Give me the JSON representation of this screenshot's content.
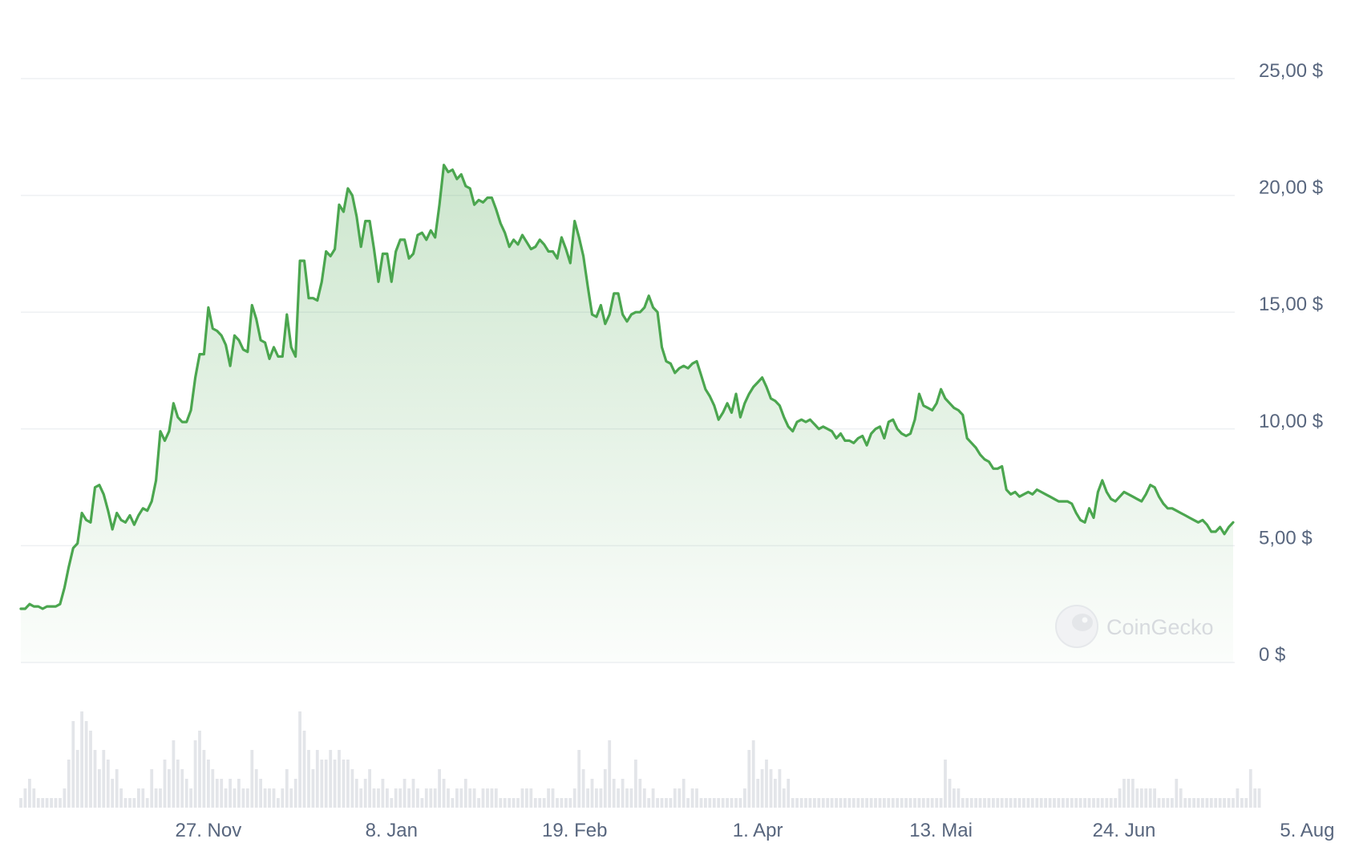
{
  "chart_data": {
    "type": "area",
    "title": "",
    "xlabel": "",
    "ylabel": "",
    "ylim": [
      0,
      25
    ],
    "y_ticks": [
      0,
      5,
      10,
      15,
      20,
      25
    ],
    "y_tick_labels": [
      "0 $",
      "5,00 $",
      "10,00 $",
      "15,00 $",
      "20,00 $",
      "25,00 $"
    ],
    "x_tick_labels": [
      "27. Nov",
      "8. Jan",
      "19. Feb",
      "1. Apr",
      "13. Mai",
      "24. Jun",
      "5. Aug"
    ],
    "x_tick_dates": [
      "2023-11-27",
      "2024-01-08",
      "2024-02-19",
      "2024-04-01",
      "2024-05-13",
      "2024-06-24",
      "2024-08-05"
    ],
    "grid": true,
    "colors": {
      "line": "#4ba64f",
      "fill": "#4ba64f",
      "grid": "#eef0f3",
      "volume": "#e3e5e9",
      "axis_text": "#58667e"
    },
    "series": [
      {
        "start_date": "2023-10-15",
        "step_days": 1,
        "values": [
          2.3,
          2.3,
          2.5,
          2.4,
          2.4,
          2.3,
          2.4,
          2.4,
          2.4,
          2.5,
          3.2,
          4.1,
          4.9,
          5.1,
          6.4,
          6.1,
          6.0,
          7.5,
          7.6,
          7.2,
          6.5,
          5.7,
          6.4,
          6.1,
          6.0,
          6.3,
          5.9,
          6.3,
          6.6,
          6.5,
          6.9,
          7.8,
          9.9,
          9.5,
          9.9,
          11.1,
          10.5,
          10.3,
          10.3,
          10.8,
          12.2,
          13.2,
          13.2,
          15.2,
          14.3,
          14.2,
          14.0,
          13.6,
          12.7,
          14.0,
          13.8,
          13.4,
          13.3,
          15.3,
          14.7,
          13.8,
          13.7,
          13.0,
          13.5,
          13.1,
          13.1,
          14.9,
          13.5,
          13.1,
          17.2,
          17.2,
          15.6,
          15.6,
          15.5,
          16.3,
          17.6,
          17.4,
          17.7,
          19.6,
          19.3,
          20.3,
          20.0,
          19.1,
          17.8,
          18.9,
          18.9,
          17.7,
          16.3,
          17.5,
          17.5,
          16.3,
          17.6,
          18.1,
          18.1,
          17.3,
          17.5,
          18.3,
          18.4,
          18.1,
          18.5,
          18.2,
          19.6,
          21.3,
          21.0,
          21.1,
          20.7,
          20.9,
          20.4,
          20.3,
          19.6,
          19.8,
          19.7,
          19.9,
          19.9,
          19.4,
          18.8,
          18.4,
          17.8,
          18.1,
          17.9,
          18.3,
          18.0,
          17.7,
          17.8,
          18.1,
          17.9,
          17.6,
          17.6,
          17.3,
          18.2,
          17.7,
          17.1,
          18.9,
          18.2,
          17.4,
          16.1,
          14.9,
          14.8,
          15.3,
          14.5,
          14.9,
          15.8,
          15.8,
          14.9,
          14.6,
          14.9,
          15.0,
          15.0,
          15.2,
          15.7,
          15.2,
          15.0,
          13.5,
          12.9,
          12.8,
          12.4,
          12.6,
          12.7,
          12.6,
          12.8,
          12.9,
          12.3,
          11.7,
          11.4,
          11.0,
          10.4,
          10.7,
          11.1,
          10.7,
          11.5,
          10.5,
          11.1,
          11.5,
          11.8,
          12.0,
          12.2,
          11.8,
          11.3,
          11.2,
          11.0,
          10.5,
          10.1,
          9.9,
          10.3,
          10.4,
          10.3,
          10.4,
          10.2,
          10.0,
          10.1,
          10.0,
          9.9,
          9.6,
          9.8,
          9.5,
          9.5,
          9.4,
          9.6,
          9.7,
          9.3,
          9.8,
          10.0,
          10.1,
          9.6,
          10.3,
          10.4,
          10.0,
          9.8,
          9.7,
          9.8,
          10.4,
          11.5,
          11.0,
          10.9,
          10.8,
          11.1,
          11.7,
          11.3,
          11.1,
          10.9,
          10.8,
          10.6,
          9.6,
          9.4,
          9.2,
          8.9,
          8.7,
          8.6,
          8.3,
          8.3,
          8.4,
          7.4,
          7.2,
          7.3,
          7.1,
          7.2,
          7.3,
          7.2,
          7.4,
          7.3,
          7.2,
          7.1,
          7.0,
          6.9,
          6.9,
          6.9,
          6.8,
          6.4,
          6.1,
          6.0,
          6.6,
          6.2,
          7.3,
          7.8,
          7.3,
          7.0,
          6.9,
          7.1,
          7.3,
          7.2,
          7.1,
          7.0,
          6.9,
          7.2,
          7.6,
          7.5,
          7.1,
          6.8,
          6.6,
          6.6,
          6.5,
          6.4,
          6.3,
          6.2,
          6.1,
          6.0,
          6.1,
          5.9,
          5.6,
          5.6,
          5.8,
          5.5,
          5.8,
          6.0
        ]
      }
    ],
    "volume": {
      "start_date": "2023-10-15",
      "step_days": 1,
      "relative_values": [
        0.1,
        0.2,
        0.3,
        0.2,
        0.1,
        0.1,
        0.1,
        0.1,
        0.1,
        0.1,
        0.2,
        0.5,
        0.9,
        0.6,
        1.0,
        0.9,
        0.8,
        0.6,
        0.4,
        0.6,
        0.5,
        0.3,
        0.4,
        0.2,
        0.1,
        0.1,
        0.1,
        0.2,
        0.2,
        0.1,
        0.4,
        0.2,
        0.2,
        0.5,
        0.4,
        0.7,
        0.5,
        0.4,
        0.3,
        0.2,
        0.7,
        0.8,
        0.6,
        0.5,
        0.4,
        0.3,
        0.3,
        0.2,
        0.3,
        0.2,
        0.3,
        0.2,
        0.2,
        0.6,
        0.4,
        0.3,
        0.2,
        0.2,
        0.2,
        0.1,
        0.2,
        0.4,
        0.2,
        0.3,
        1.0,
        0.8,
        0.6,
        0.4,
        0.6,
        0.5,
        0.5,
        0.6,
        0.5,
        0.6,
        0.5,
        0.5,
        0.4,
        0.3,
        0.2,
        0.3,
        0.4,
        0.2,
        0.2,
        0.3,
        0.2,
        0.1,
        0.2,
        0.2,
        0.3,
        0.2,
        0.3,
        0.2,
        0.1,
        0.2,
        0.2,
        0.2,
        0.4,
        0.3,
        0.2,
        0.1,
        0.2,
        0.2,
        0.3,
        0.2,
        0.2,
        0.1,
        0.2,
        0.2,
        0.2,
        0.2,
        0.1,
        0.1,
        0.1,
        0.1,
        0.1,
        0.2,
        0.2,
        0.2,
        0.1,
        0.1,
        0.1,
        0.2,
        0.2,
        0.1,
        0.1,
        0.1,
        0.1,
        0.2,
        0.6,
        0.4,
        0.2,
        0.3,
        0.2,
        0.2,
        0.4,
        0.7,
        0.3,
        0.2,
        0.3,
        0.2,
        0.2,
        0.5,
        0.3,
        0.2,
        0.1,
        0.2,
        0.1,
        0.1,
        0.1,
        0.1,
        0.2,
        0.2,
        0.3,
        0.1,
        0.2,
        0.2,
        0.1,
        0.1,
        0.1,
        0.1,
        0.1,
        0.1,
        0.1,
        0.1,
        0.1,
        0.1,
        0.2,
        0.6,
        0.7,
        0.3,
        0.4,
        0.5,
        0.4,
        0.3,
        0.4,
        0.2,
        0.3,
        0.1,
        0.1,
        0.1,
        0.1,
        0.1,
        0.1,
        0.1,
        0.1,
        0.1,
        0.1,
        0.1,
        0.1,
        0.1,
        0.1,
        0.1,
        0.1,
        0.1,
        0.1,
        0.1,
        0.1,
        0.1,
        0.1,
        0.1,
        0.1,
        0.1,
        0.1,
        0.1,
        0.1,
        0.1,
        0.1,
        0.1,
        0.1,
        0.1,
        0.1,
        0.1,
        0.5,
        0.3,
        0.2,
        0.2,
        0.1,
        0.1,
        0.1,
        0.1,
        0.1,
        0.1,
        0.1,
        0.1,
        0.1,
        0.1,
        0.1,
        0.1,
        0.1,
        0.1,
        0.1,
        0.1,
        0.1,
        0.1,
        0.1,
        0.1,
        0.1,
        0.1,
        0.1,
        0.1,
        0.1,
        0.1,
        0.1,
        0.1,
        0.1,
        0.1,
        0.1,
        0.1,
        0.1,
        0.1,
        0.1,
        0.1,
        0.2,
        0.3,
        0.3,
        0.3,
        0.2,
        0.2,
        0.2,
        0.2,
        0.2,
        0.1,
        0.1,
        0.1,
        0.1,
        0.3,
        0.2,
        0.1,
        0.1,
        0.1,
        0.1,
        0.1,
        0.1,
        0.1,
        0.1,
        0.1,
        0.1,
        0.1,
        0.1,
        0.2,
        0.1,
        0.1,
        0.4,
        0.2,
        0.2
      ]
    }
  },
  "watermark": {
    "text": "CoinGecko",
    "icon": "gecko-logo-icon"
  }
}
